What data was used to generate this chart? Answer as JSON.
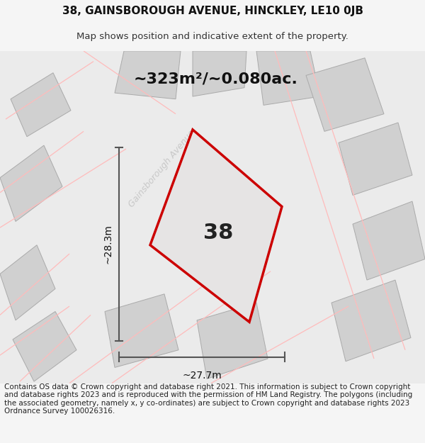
{
  "title_line1": "38, GAINSBOROUGH AVENUE, HINCKLEY, LE10 0JB",
  "title_line2": "Map shows position and indicative extent of the property.",
  "area_text": "~323m²/~0.080ac.",
  "plot_number": "38",
  "dim_width": "~27.7m",
  "dim_height": "~28.3m",
  "street_label": "Gainsborough Avenue",
  "footer_text": "Contains OS data © Crown copyright and database right 2021. This information is subject to Crown copyright and database rights 2023 and is reproduced with the permission of HM Land Registry. The polygons (including the associated geometry, namely x, y co-ordinates) are subject to Crown copyright and database rights 2023 Ordnance Survey 100026316.",
  "bg_color": "#f5f5f5",
  "map_bg": "#e8e8e8",
  "plot_fill": "#e6e4e4",
  "plot_border": "#cc0000",
  "neighbor_fill": "#d0d0d0",
  "neighbor_border": "#aaaaaa",
  "pink_line_color": "#ffbbbb",
  "dim_line_color": "#555555",
  "street_label_color": "#c8c8c8",
  "title_fontsize": 11,
  "subtitle_fontsize": 9.5,
  "area_fontsize": 16,
  "plot_num_fontsize": 22,
  "dim_fontsize": 10,
  "footer_fontsize": 7.5
}
